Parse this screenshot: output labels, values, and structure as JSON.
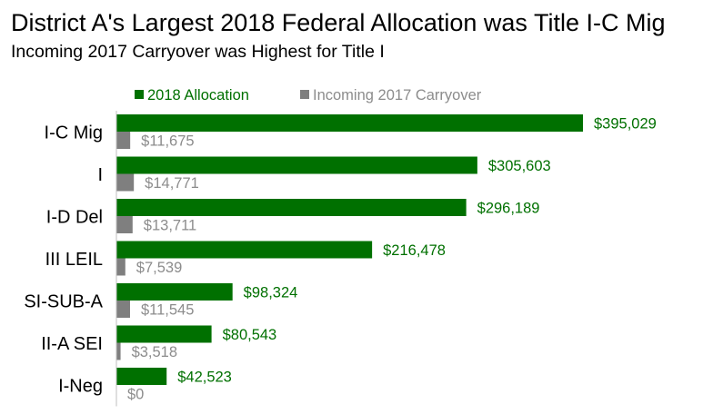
{
  "chart_data": {
    "type": "bar",
    "orientation": "horizontal",
    "title": "District A's Largest 2018 Federal Allocation was Title I-C Mig",
    "subtitle": "Incoming 2017 Carryover was Highest for Title I",
    "categories": [
      "I-C Mig",
      "I",
      "I-D Del",
      "III LEIL",
      "SI-SUB-A",
      "II-A SEI",
      "I-Neg"
    ],
    "series": [
      {
        "name": "2018 Allocation",
        "color": "#007000",
        "values": [
          395029,
          305603,
          296189,
          216478,
          98324,
          80543,
          42523
        ],
        "labels": [
          "$395,029",
          "$305,603",
          "$296,189",
          "$216,478",
          "$98,324",
          "$80,543",
          "$42,523"
        ]
      },
      {
        "name": "Incoming 2017 Carryover",
        "color": "#7f7f7f",
        "label_color": "#8c8c8c",
        "values": [
          11675,
          14771,
          13711,
          7539,
          11545,
          3518,
          0
        ],
        "labels": [
          "$11,675",
          "$14,771",
          "$13,711",
          "$7,539",
          "$11,545",
          "$3,518",
          "$0"
        ]
      }
    ],
    "xlim": [
      0,
      400000
    ],
    "legend_position": "top",
    "grid": false
  }
}
